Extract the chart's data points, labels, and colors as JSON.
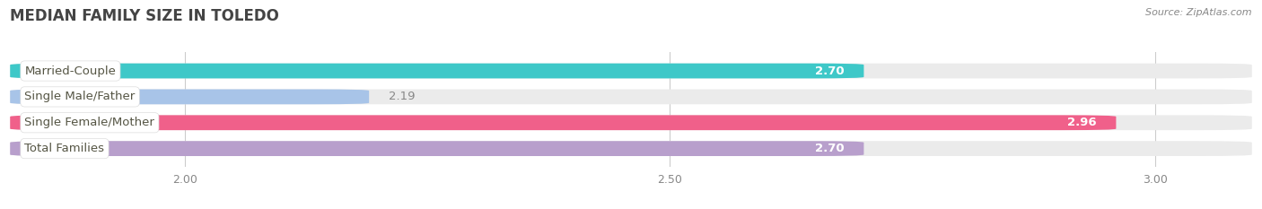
{
  "title": "MEDIAN FAMILY SIZE IN TOLEDO",
  "source": "Source: ZipAtlas.com",
  "categories": [
    "Married-Couple",
    "Single Male/Father",
    "Single Female/Mother",
    "Total Families"
  ],
  "values": [
    2.7,
    2.19,
    2.96,
    2.7
  ],
  "bar_colors": [
    "#3ec8c8",
    "#a8c4e8",
    "#f0608a",
    "#b89fcc"
  ],
  "background_bar_color": "#ebebeb",
  "xlim": [
    1.82,
    3.1
  ],
  "xticks": [
    2.0,
    2.5,
    3.0
  ],
  "label_color": "#555544",
  "title_color": "#444444",
  "bar_height": 0.58,
  "label_font_size": 9.5,
  "value_font_size": 9.5,
  "title_font_size": 12,
  "fig_bg": "#ffffff",
  "bar_gap": 0.42
}
